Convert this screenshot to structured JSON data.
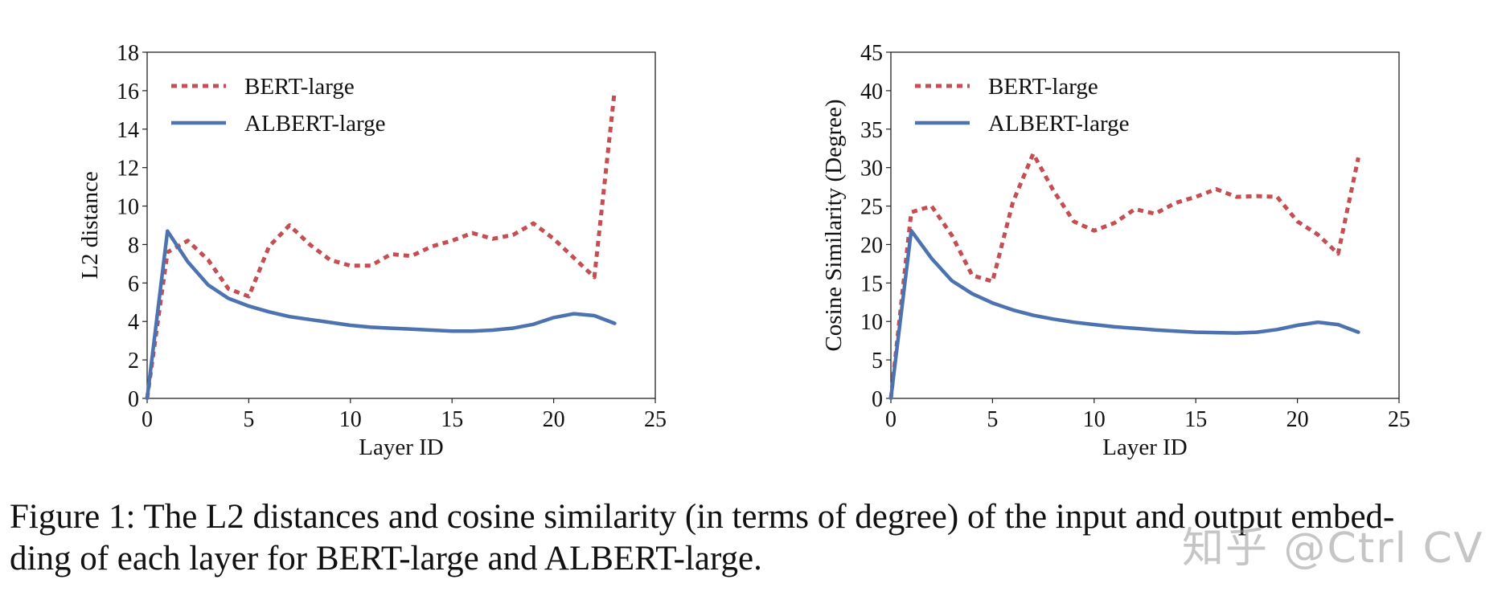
{
  "figure": {
    "caption_line1": "Figure 1: The L2 distances and cosine similarity (in terms of degree) of the input and output embed-",
    "caption_line2": "ding of each layer for BERT-large and ALBERT-large.",
    "watermark": "知乎 @Ctrl CV"
  },
  "colors": {
    "bert": "#c44e52",
    "albert": "#4c72b0",
    "axis": "#222222"
  },
  "chart_data": [
    {
      "type": "line",
      "title": "",
      "xlabel": "Layer ID",
      "ylabel": "L2 distance",
      "xlim": [
        0,
        25
      ],
      "ylim": [
        0,
        18
      ],
      "xticks": [
        0,
        5,
        10,
        15,
        20,
        25
      ],
      "yticks": [
        0,
        2,
        4,
        6,
        8,
        10,
        12,
        14,
        16,
        18
      ],
      "grid": false,
      "legend_position": "top-left",
      "x": [
        0,
        1,
        2,
        3,
        4,
        5,
        6,
        7,
        8,
        9,
        10,
        11,
        12,
        13,
        14,
        15,
        16,
        17,
        18,
        19,
        20,
        21,
        22,
        23
      ],
      "series": [
        {
          "name": "BERT-large",
          "style": "dotted",
          "color": "#c44e52",
          "values": [
            0,
            7.6,
            8.2,
            7.2,
            5.7,
            5.3,
            7.9,
            9.0,
            8.0,
            7.2,
            6.9,
            6.9,
            7.5,
            7.4,
            7.9,
            8.2,
            8.6,
            8.3,
            8.5,
            9.1,
            8.3,
            7.3,
            6.3,
            16.0
          ]
        },
        {
          "name": "ALBERT-large",
          "style": "solid",
          "color": "#4c72b0",
          "values": [
            0,
            8.7,
            7.1,
            5.9,
            5.2,
            4.8,
            4.5,
            4.25,
            4.1,
            3.95,
            3.8,
            3.7,
            3.65,
            3.6,
            3.55,
            3.5,
            3.5,
            3.55,
            3.65,
            3.85,
            4.2,
            4.4,
            4.3,
            3.9
          ]
        }
      ]
    },
    {
      "type": "line",
      "title": "",
      "xlabel": "Layer ID",
      "ylabel": "Cosine Similarity (Degree)",
      "xlim": [
        0,
        25
      ],
      "ylim": [
        0,
        45
      ],
      "xticks": [
        0,
        5,
        10,
        15,
        20,
        25
      ],
      "yticks": [
        0,
        5,
        10,
        15,
        20,
        25,
        30,
        35,
        40,
        45
      ],
      "grid": false,
      "legend_position": "top-left",
      "x": [
        0,
        1,
        2,
        3,
        4,
        5,
        6,
        7,
        8,
        9,
        10,
        11,
        12,
        13,
        14,
        15,
        16,
        17,
        18,
        19,
        20,
        21,
        22,
        23
      ],
      "series": [
        {
          "name": "BERT-large",
          "style": "dotted",
          "color": "#c44e52",
          "values": [
            0,
            24.2,
            25.0,
            21.2,
            16.0,
            15.2,
            25.5,
            31.8,
            27.0,
            23.0,
            21.8,
            22.8,
            24.6,
            24.0,
            25.4,
            26.2,
            27.2,
            26.2,
            26.3,
            26.2,
            23.0,
            21.3,
            18.8,
            31.3
          ]
        },
        {
          "name": "ALBERT-large",
          "style": "solid",
          "color": "#4c72b0",
          "values": [
            0,
            21.8,
            18.2,
            15.3,
            13.6,
            12.4,
            11.5,
            10.8,
            10.3,
            9.9,
            9.6,
            9.3,
            9.1,
            8.9,
            8.75,
            8.6,
            8.55,
            8.5,
            8.6,
            8.95,
            9.5,
            9.9,
            9.6,
            8.6
          ]
        }
      ]
    }
  ]
}
